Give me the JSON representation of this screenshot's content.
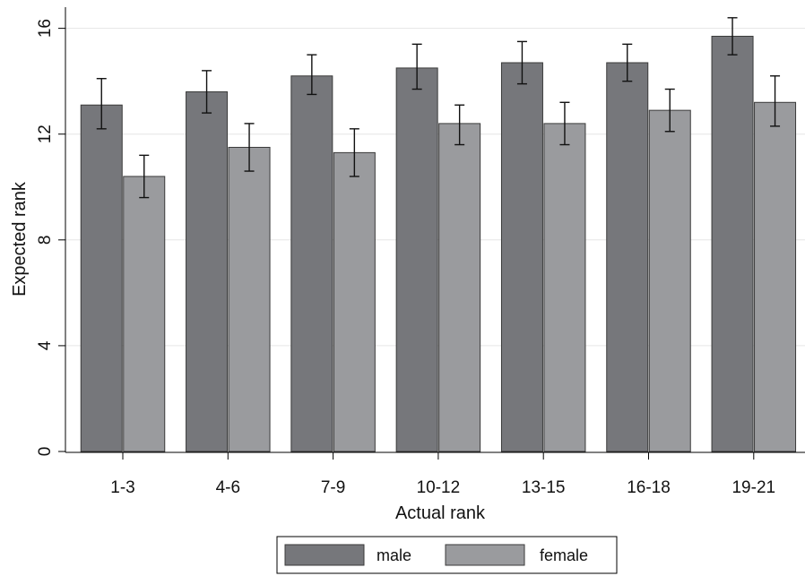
{
  "chart_data": {
    "type": "bar",
    "title": "",
    "xlabel": "Actual rank",
    "ylabel": "Expected rank",
    "ylim": [
      0,
      16.8
    ],
    "yticks": [
      0,
      4,
      8,
      12,
      16
    ],
    "grid": true,
    "legend_position": "bottom",
    "categories": [
      "1-3",
      "4-6",
      "7-9",
      "10-12",
      "13-15",
      "16-18",
      "19-21"
    ],
    "series": [
      {
        "name": "male",
        "color": "#76777b",
        "values": [
          13.1,
          13.6,
          14.2,
          14.5,
          14.7,
          14.7,
          15.7
        ],
        "ci_low": [
          12.2,
          12.8,
          13.5,
          13.7,
          13.9,
          14.0,
          15.0
        ],
        "ci_high": [
          14.1,
          14.4,
          15.0,
          15.4,
          15.5,
          15.4,
          16.4
        ]
      },
      {
        "name": "female",
        "color": "#9a9b9e",
        "values": [
          10.4,
          11.5,
          11.3,
          12.4,
          12.4,
          12.9,
          13.2
        ],
        "ci_low": [
          9.6,
          10.6,
          10.4,
          11.6,
          11.6,
          12.1,
          12.3
        ],
        "ci_high": [
          11.2,
          12.4,
          12.2,
          13.1,
          13.2,
          13.7,
          14.2
        ]
      }
    ]
  }
}
